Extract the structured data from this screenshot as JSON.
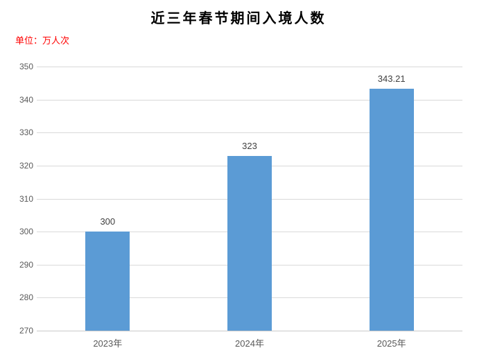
{
  "unit_label": "单位：万人次",
  "chart_data": {
    "type": "bar",
    "title": "近三年春节期间入境人数",
    "subtitle": "",
    "unit": "万人次",
    "categories": [
      "2023年",
      "2024年",
      "2025年"
    ],
    "values": [
      300,
      323,
      343.21
    ],
    "value_labels": [
      "300",
      "323",
      "343.21"
    ],
    "ylabel": "",
    "xlabel": "",
    "ylim": [
      270,
      350
    ],
    "ytick_step": 10,
    "grid": true,
    "legend": "none",
    "bar_color": "#5b9bd5",
    "gridline_color": "#d9d9d9",
    "tick_label_color": "#595959",
    "data_label_color": "#3f3f3f",
    "title_color": "#000000",
    "unit_label_color": "#ff0000",
    "background_color": "#ffffff"
  }
}
